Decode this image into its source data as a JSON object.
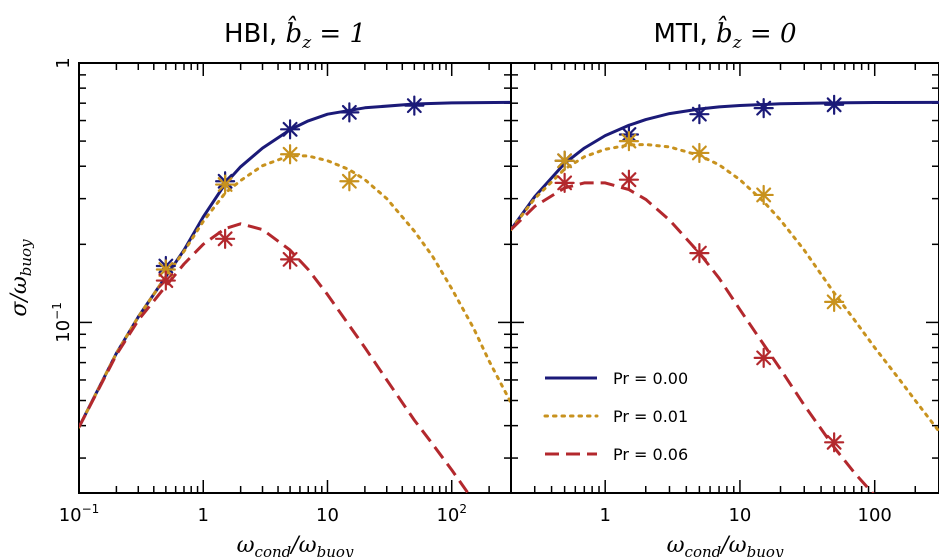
{
  "chart_data": [
    {
      "type": "line",
      "title": "HBI, b̂_z = 1",
      "title_prefix": "HBI, ",
      "title_math": "b̂",
      "title_math_sub": "z",
      "title_math_rest": " = 1",
      "xlabel": "ω_cond / ω_buoy",
      "xlabel_main": "ω",
      "xlabel_sub1": "cond",
      "xlabel_sub2": "buoy",
      "ylabel_main": "σ",
      "ylabel_sub": "buoy",
      "xscale": "log",
      "yscale": "log",
      "xlim": [
        0.1,
        300
      ],
      "ylim": [
        0.022,
        1.0
      ],
      "xticks": [
        {
          "v": 0.1,
          "base": "10",
          "exp": "−1"
        },
        {
          "v": 1,
          "base": "1",
          "exp": ""
        },
        {
          "v": 10,
          "base": "10",
          "exp": ""
        },
        {
          "v": 100,
          "base": "10",
          "exp": "2"
        }
      ],
      "yticks": [
        {
          "v": 0.1,
          "base": "10",
          "exp": "−1"
        },
        {
          "v": 1,
          "base": "1",
          "exp": ""
        }
      ],
      "series": [
        {
          "name": "Pr = 0.00",
          "style": "solid",
          "color": "#1b1a78",
          "x": [
            0.1,
            0.2,
            0.3,
            0.5,
            0.7,
            1,
            1.5,
            2,
            3,
            5,
            7,
            10,
            20,
            50,
            100,
            300
          ],
          "y": [
            0.0395,
            0.076,
            0.105,
            0.15,
            0.19,
            0.255,
            0.342,
            0.398,
            0.47,
            0.553,
            0.598,
            0.635,
            0.672,
            0.695,
            0.702,
            0.705
          ],
          "markers_x": [
            0.5,
            1.5,
            5,
            15,
            50
          ],
          "markers_y": [
            0.165,
            0.35,
            0.555,
            0.645,
            0.685
          ]
        },
        {
          "name": "Pr = 0.01",
          "style": "dotted",
          "color": "#c8921e",
          "x": [
            0.1,
            0.2,
            0.3,
            0.5,
            0.7,
            1,
            1.5,
            2,
            3,
            5,
            7,
            10,
            15,
            20,
            30,
            50,
            70,
            100,
            150,
            200,
            300
          ],
          "y": [
            0.0395,
            0.076,
            0.105,
            0.15,
            0.188,
            0.245,
            0.315,
            0.352,
            0.402,
            0.44,
            0.438,
            0.42,
            0.388,
            0.355,
            0.3,
            0.225,
            0.18,
            0.135,
            0.095,
            0.071,
            0.049
          ],
          "markers_x": [
            0.5,
            1.5,
            5,
            15
          ],
          "markers_y": [
            0.16,
            0.34,
            0.445,
            0.35
          ]
        },
        {
          "name": "Pr = 0.06",
          "style": "dashed",
          "color": "#b3282d",
          "x": [
            0.1,
            0.2,
            0.3,
            0.5,
            0.7,
            1,
            1.5,
            2,
            3,
            5,
            7,
            10,
            20,
            30,
            50,
            70,
            100,
            150,
            200
          ],
          "y": [
            0.0395,
            0.075,
            0.102,
            0.138,
            0.168,
            0.2,
            0.23,
            0.24,
            0.228,
            0.19,
            0.16,
            0.128,
            0.08,
            0.06,
            0.042,
            0.034,
            0.027,
            0.0205,
            0.017
          ],
          "markers_x": [
            0.5,
            1.5,
            5
          ],
          "markers_y": [
            0.145,
            0.21,
            0.175
          ]
        }
      ]
    },
    {
      "type": "line",
      "title": "MTI, b̂_z = 0",
      "title_prefix": "MTI, ",
      "title_math": "b̂",
      "title_math_sub": "z",
      "title_math_rest": " = 0",
      "xlabel": "ω_cond / ω_buoy",
      "xlabel_main": "ω",
      "xlabel_sub1": "cond",
      "xlabel_sub2": "buoy",
      "xscale": "log",
      "yscale": "log",
      "xlim": [
        0.2,
        300
      ],
      "ylim": [
        0.022,
        1.0
      ],
      "xticks": [
        {
          "v": 1,
          "base": "1",
          "exp": ""
        },
        {
          "v": 10,
          "base": "10",
          "exp": ""
        },
        {
          "v": 100,
          "base": "100",
          "exp": ""
        }
      ],
      "series": [
        {
          "name": "Pr = 0.00",
          "style": "solid",
          "color": "#1b1a78",
          "x": [
            0.2,
            0.3,
            0.5,
            0.7,
            1,
            1.5,
            2,
            3,
            5,
            7,
            10,
            20,
            50,
            100,
            300
          ],
          "y": [
            0.228,
            0.305,
            0.41,
            0.47,
            0.525,
            0.575,
            0.605,
            0.638,
            0.665,
            0.677,
            0.686,
            0.696,
            0.702,
            0.704,
            0.705
          ],
          "markers_x": [
            0.5,
            1.5,
            5,
            15,
            50
          ],
          "markers_y": [
            0.42,
            0.53,
            0.635,
            0.67,
            0.69
          ]
        },
        {
          "name": "Pr = 0.01",
          "style": "dotted",
          "color": "#c8921e",
          "x": [
            0.2,
            0.3,
            0.5,
            0.7,
            1,
            1.5,
            2,
            3,
            5,
            7,
            10,
            15,
            20,
            30,
            50,
            70,
            100,
            150,
            200,
            300
          ],
          "y": [
            0.228,
            0.3,
            0.39,
            0.435,
            0.465,
            0.483,
            0.485,
            0.475,
            0.44,
            0.405,
            0.355,
            0.292,
            0.248,
            0.19,
            0.13,
            0.103,
            0.08,
            0.061,
            0.05,
            0.038
          ],
          "markers_x": [
            0.5,
            1.5,
            5,
            15,
            50
          ],
          "markers_y": [
            0.42,
            0.5,
            0.45,
            0.31,
            0.12
          ]
        },
        {
          "name": "Pr = 0.06",
          "style": "dashed",
          "color": "#b3282d",
          "x": [
            0.2,
            0.3,
            0.5,
            0.7,
            1,
            1.5,
            2,
            3,
            5,
            7,
            10,
            20,
            30,
            50,
            70,
            100,
            120
          ],
          "y": [
            0.228,
            0.28,
            0.33,
            0.345,
            0.345,
            0.325,
            0.298,
            0.248,
            0.185,
            0.148,
            0.112,
            0.066,
            0.048,
            0.033,
            0.0265,
            0.0215,
            0.0195
          ],
          "markers_x": [
            0.5,
            1.5,
            5,
            15,
            50
          ],
          "markers_y": [
            0.345,
            0.355,
            0.185,
            0.073,
            0.0345
          ]
        }
      ]
    }
  ],
  "legend": {
    "placement": "lower-left of right panel",
    "entries": [
      {
        "label": "Pr = 0.00",
        "style": "solid",
        "color": "#1b1a78"
      },
      {
        "label": "Pr = 0.01",
        "style": "dotted",
        "color": "#c8921e"
      },
      {
        "label": "Pr = 0.06",
        "style": "dashed",
        "color": "#b3282d"
      }
    ]
  }
}
